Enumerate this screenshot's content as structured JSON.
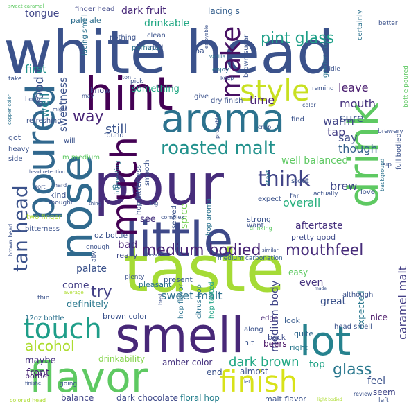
{
  "words": [
    {
      "text": "white head",
      "color": "#3b528b"
    },
    {
      "text": "taste",
      "color": "#a5db36"
    },
    {
      "text": "pour",
      "color": "#472d7b"
    },
    {
      "text": "smell",
      "color": "#482878"
    },
    {
      "text": "hint",
      "color": "#440154"
    },
    {
      "text": "little",
      "color": "#3e4989"
    },
    {
      "text": "nose",
      "color": "#306a8e"
    },
    {
      "text": "aroma",
      "color": "#2c728e"
    },
    {
      "text": "flavor",
      "color": "#5ec962"
    },
    {
      "text": "drink",
      "color": "#5ec962"
    },
    {
      "text": "poured",
      "color": "#31688e"
    },
    {
      "text": "lot",
      "color": "#26828e"
    },
    {
      "text": "much",
      "color": "#440154"
    },
    {
      "text": "touch",
      "color": "#1f9e89"
    },
    {
      "text": "finish",
      "color": "#d8e219"
    },
    {
      "text": "style",
      "color": "#c8e020"
    },
    {
      "text": "make",
      "color": "#471063"
    },
    {
      "text": "roasted malt",
      "color": "#21918c"
    },
    {
      "text": "think",
      "color": "#414487"
    },
    {
      "text": "tan head",
      "color": "#3b528b"
    },
    {
      "text": "medium bodied",
      "color": "#482475"
    },
    {
      "text": "mouthfeel",
      "color": "#472c7a"
    },
    {
      "text": "pint glass",
      "color": "#1fa088"
    },
    {
      "text": "alcohol",
      "color": "#addc30"
    },
    {
      "text": "glass",
      "color": "#2a788e"
    },
    {
      "text": "dark brown",
      "color": "#22a884"
    },
    {
      "text": "try",
      "color": "#423f85"
    },
    {
      "text": "way",
      "color": "#482576"
    },
    {
      "text": "sweet malt",
      "color": "#2d708e"
    },
    {
      "text": "medium body",
      "color": "#404588"
    },
    {
      "text": "caramel malt",
      "color": "#433e85"
    },
    {
      "text": "good",
      "color": "#3b528b"
    },
    {
      "text": "well",
      "color": "#26818e"
    },
    {
      "text": "first",
      "color": "#21918c"
    },
    {
      "text": "still",
      "color": "#3a548c"
    },
    {
      "text": "time",
      "color": "#482173"
    },
    {
      "text": "mouth",
      "color": "#46327e"
    },
    {
      "text": "leave",
      "color": "#481b6d"
    },
    {
      "text": "sure",
      "color": "#3b528b"
    },
    {
      "text": "tap",
      "color": "#433d84"
    },
    {
      "text": "warm",
      "color": "#414487"
    },
    {
      "text": "say",
      "color": "#3e4a89"
    },
    {
      "text": "though",
      "color": "#35608d"
    },
    {
      "text": "brew",
      "color": "#3f4788"
    },
    {
      "text": "overall",
      "color": "#2ab07f"
    },
    {
      "text": "well balanced",
      "color": "#5ec962"
    },
    {
      "text": "aftertaste",
      "color": "#46307e"
    },
    {
      "text": "dark fruit",
      "color": "#482979"
    },
    {
      "text": "drinkable",
      "color": "#22a884"
    },
    {
      "text": "lacing s",
      "color": "#355f8d"
    },
    {
      "text": "tongue",
      "color": "#404688"
    },
    {
      "text": "finger head",
      "color": "#3f4788"
    },
    {
      "text": "pale ale",
      "color": "#2e6e8e"
    },
    {
      "text": "lacing smell",
      "color": "#2c728e"
    },
    {
      "text": "sweetness",
      "color": "#3b528b"
    },
    {
      "text": "something",
      "color": "#22a884"
    },
    {
      "text": "know",
      "color": "#414487"
    },
    {
      "text": "see",
      "color": "#46327e"
    },
    {
      "text": "bad",
      "color": "#482475"
    },
    {
      "text": "spice",
      "color": "#75d054"
    },
    {
      "text": "palate",
      "color": "#3b528b"
    },
    {
      "text": "come",
      "color": "#433e85"
    },
    {
      "text": "definitely",
      "color": "#2a788e"
    },
    {
      "text": "oz bottle",
      "color": "#3b528b"
    },
    {
      "text": "really",
      "color": "#3e4989"
    },
    {
      "text": "present",
      "color": "#375a8c"
    },
    {
      "text": "pleasant",
      "color": "#2c728e"
    },
    {
      "text": "even",
      "color": "#46337f"
    },
    {
      "text": "great",
      "color": "#3b528b"
    },
    {
      "text": "easy",
      "color": "#5ec962"
    },
    {
      "text": "expected",
      "color": "#2a788e"
    },
    {
      "text": "nice",
      "color": "#471365"
    },
    {
      "text": "look",
      "color": "#375a8c"
    },
    {
      "text": "top",
      "color": "#20a386"
    },
    {
      "text": "feel",
      "color": "#3b528b"
    },
    {
      "text": "seem",
      "color": "#404688"
    },
    {
      "text": "end",
      "color": "#3b528b"
    },
    {
      "text": "front",
      "color": "#482475"
    },
    {
      "text": "maybe",
      "color": "#46307e"
    },
    {
      "text": "bottle",
      "color": "#482475"
    },
    {
      "text": "balance",
      "color": "#414487"
    },
    {
      "text": "dark chocolate",
      "color": "#3e4989"
    },
    {
      "text": "floral hop",
      "color": "#27808e"
    },
    {
      "text": "malt flavor",
      "color": "#3b528b"
    },
    {
      "text": "amber color",
      "color": "#46337f"
    },
    {
      "text": "drinkability",
      "color": "#84d44b"
    },
    {
      "text": "brown color",
      "color": "#3b528b"
    },
    {
      "text": "almost",
      "color": "#3b528b"
    },
    {
      "text": "beers",
      "color": "#471164"
    },
    {
      "text": "back",
      "color": "#3e4a89"
    },
    {
      "text": "hit",
      "color": "#3a548c"
    },
    {
      "text": "right",
      "color": "#2a788e"
    },
    {
      "text": "quite",
      "color": "#31688e"
    },
    {
      "text": "head smell",
      "color": "#3b528b"
    },
    {
      "text": "edge",
      "color": "#482878"
    },
    {
      "text": "along",
      "color": "#3b528b"
    },
    {
      "text": "although",
      "color": "#3b528b"
    },
    {
      "text": "citrus hop",
      "color": "#2c728e"
    },
    {
      "text": "hop tasted",
      "color": "#20a386"
    },
    {
      "text": "hop flavor",
      "color": "#2c728e"
    },
    {
      "text": "hop aroma",
      "color": "#2c728e"
    },
    {
      "text": "strong",
      "color": "#3b528b"
    },
    {
      "text": "want",
      "color": "#3b528b"
    },
    {
      "text": "pretty good",
      "color": "#3e4a89"
    },
    {
      "text": "medium carbonation",
      "color": "#35608d"
    },
    {
      "text": "expect",
      "color": "#3b528b"
    },
    {
      "text": "far",
      "color": "#3b528b"
    },
    {
      "text": "love",
      "color": "#3b528b"
    },
    {
      "text": "stout",
      "color": "#3b528b"
    },
    {
      "text": "actually",
      "color": "#3b528b"
    },
    {
      "text": "start",
      "color": "#2c728e"
    },
    {
      "text": "served",
      "color": "#3b528b"
    },
    {
      "text": "smooth",
      "color": "#3b528b"
    },
    {
      "text": "brown sugar",
      "color": "#3b528b"
    },
    {
      "text": "golden color",
      "color": "#2c728e"
    },
    {
      "text": "certainly",
      "color": "#2c728e"
    },
    {
      "text": "better",
      "color": "#3b528b"
    },
    {
      "text": "full bodied",
      "color": "#3b528b"
    },
    {
      "text": "bottle poured",
      "color": "#5ec962"
    },
    {
      "text": "brewery",
      "color": "#3b528b"
    },
    {
      "text": "sip",
      "color": "#3b528b"
    },
    {
      "text": "background",
      "color": "#2c728e"
    },
    {
      "text": "middle",
      "color": "#3b528b"
    },
    {
      "text": "remind",
      "color": "#3b528b"
    },
    {
      "text": "find",
      "color": "#3b528b"
    },
    {
      "text": "color",
      "color": "#3b528b"
    },
    {
      "text": "crisp",
      "color": "#3b528b"
    },
    {
      "text": "dry finish",
      "color": "#3b528b"
    },
    {
      "text": "probably",
      "color": "#3b528b"
    },
    {
      "text": "give",
      "color": "#3b528b"
    },
    {
      "text": "enjoy",
      "color": "#2c728e"
    },
    {
      "text": "keep",
      "color": "#3b528b"
    },
    {
      "text": "vanilla",
      "color": "#2c728e"
    },
    {
      "text": "ipa",
      "color": "#3b528b"
    },
    {
      "text": "enjoyable",
      "color": "#3b528b"
    },
    {
      "text": "ton",
      "color": "#3b528b"
    },
    {
      "text": "tried",
      "color": "#3b528b"
    },
    {
      "text": "clean",
      "color": "#3b528b"
    },
    {
      "text": "perhaps",
      "color": "#2c728e"
    },
    {
      "text": "nothing",
      "color": "#3b528b"
    },
    {
      "text": "pick",
      "color": "#3b528b"
    },
    {
      "text": "found",
      "color": "#3b528b"
    },
    {
      "text": "m medium",
      "color": "#5ec962"
    },
    {
      "text": "got",
      "color": "#3b528b"
    },
    {
      "text": "will",
      "color": "#3b528b"
    },
    {
      "text": "heavy",
      "color": "#3b528b"
    },
    {
      "text": "side",
      "color": "#3b528b"
    },
    {
      "text": "hard",
      "color": "#3b528b"
    },
    {
      "text": "sort",
      "color": "#3b528b"
    },
    {
      "text": "go",
      "color": "#2c728e"
    },
    {
      "text": "kind",
      "color": "#3b528b"
    },
    {
      "text": "thought",
      "color": "#3b528b"
    },
    {
      "text": "two finger",
      "color": "#addc30"
    },
    {
      "text": "bitterness",
      "color": "#3b528b"
    },
    {
      "text": "hop bitterness",
      "color": "#3b528b"
    },
    {
      "text": "interesting",
      "color": "#2c728e"
    },
    {
      "text": "thing",
      "color": "#3b528b"
    },
    {
      "text": "big",
      "color": "#3b528b"
    },
    {
      "text": "complex",
      "color": "#3b528b"
    },
    {
      "text": "drinking",
      "color": "#5ec962"
    },
    {
      "text": "enough",
      "color": "#3b528b"
    },
    {
      "text": "abv",
      "color": "#3b528b"
    },
    {
      "text": "plenty",
      "color": "#3b528b"
    },
    {
      "text": "head s",
      "color": "#3b528b"
    },
    {
      "text": "similar",
      "color": "#3b528b"
    },
    {
      "text": "best",
      "color": "#3b528b"
    },
    {
      "text": "made",
      "color": "#3b528b"
    },
    {
      "text": "average",
      "color": "#addc30"
    },
    {
      "text": "thin",
      "color": "#3b528b"
    },
    {
      "text": "12oz bottle",
      "color": "#2c728e"
    },
    {
      "text": "brown head",
      "color": "#3b528b"
    },
    {
      "text": "head retention",
      "color": "#3b528b"
    },
    {
      "text": "copper color",
      "color": "#2c728e"
    },
    {
      "text": "refreshing",
      "color": "#3b528b"
    },
    {
      "text": "body",
      "color": "#3b528b"
    },
    {
      "text": "might",
      "color": "#3b528b"
    },
    {
      "text": "take",
      "color": "#3b528b"
    },
    {
      "text": "may",
      "color": "#3b528b"
    },
    {
      "text": "sweet caramel",
      "color": "#5ec962"
    },
    {
      "text": "going",
      "color": "#3b528b"
    },
    {
      "text": "let",
      "color": "#3b528b"
    },
    {
      "text": "finishe",
      "color": "#3b528b"
    },
    {
      "text": "colored head",
      "color": "#addc30"
    },
    {
      "text": "light bodied",
      "color": "#addc30"
    },
    {
      "text": "review",
      "color": "#3b528b"
    },
    {
      "text": "left",
      "color": "#3b528b"
    }
  ]
}
